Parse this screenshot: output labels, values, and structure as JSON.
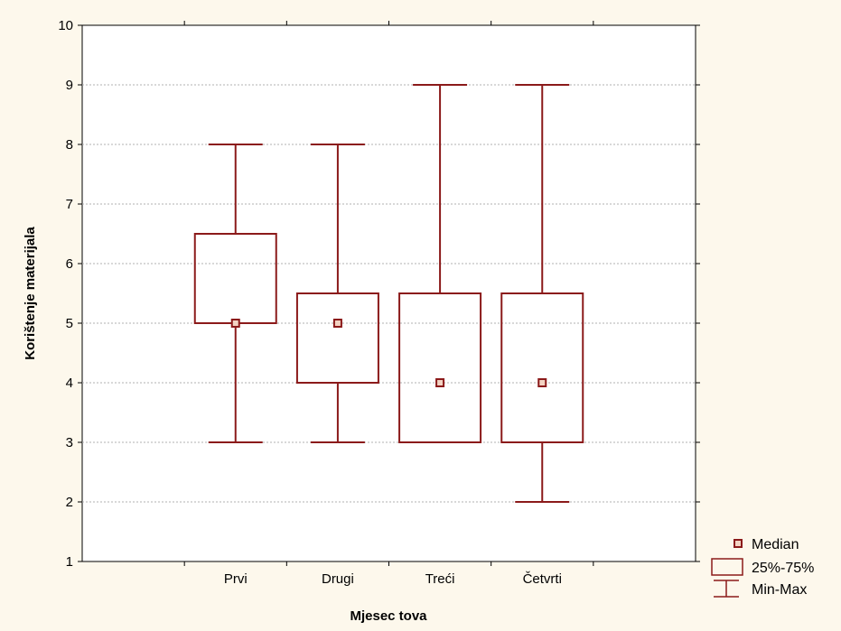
{
  "chart_data": {
    "type": "boxplot",
    "title": "",
    "xlabel": "Mjesec tova",
    "ylabel": "Korištenje materijala",
    "ylim": [
      1,
      10
    ],
    "yticks": [
      "1",
      "2",
      "3",
      "4",
      "5",
      "6",
      "7",
      "8",
      "9",
      "10"
    ],
    "grid": "horizontal dashed",
    "legend_position": "bottom-right",
    "categories": [
      "Prvi",
      "Drugi",
      "Treći",
      "Četvrti"
    ],
    "boxes": [
      {
        "category": "Prvi",
        "min": 3,
        "q1": 5,
        "median": 5,
        "q3": 6.5,
        "max": 8
      },
      {
        "category": "Drugi",
        "min": 3,
        "q1": 4,
        "median": 5,
        "q3": 5.5,
        "max": 8
      },
      {
        "category": "Treći",
        "min": 3,
        "q1": 3,
        "median": 4,
        "q3": 5.5,
        "max": 9
      },
      {
        "category": "Četvrti",
        "min": 2,
        "q1": 3,
        "median": 4,
        "q3": 5.5,
        "max": 9
      }
    ],
    "legend": [
      {
        "key": "median",
        "label": "Median"
      },
      {
        "key": "iqr",
        "label": "25%-75%"
      },
      {
        "key": "range",
        "label": "Min-Max"
      }
    ],
    "colors": {
      "box": "#8b1a1a",
      "median_fill": "#f3d3c3",
      "plot_bg": "#ffffff",
      "page_bg": "#fdf8ec",
      "grid": "#b0b0b0"
    }
  }
}
